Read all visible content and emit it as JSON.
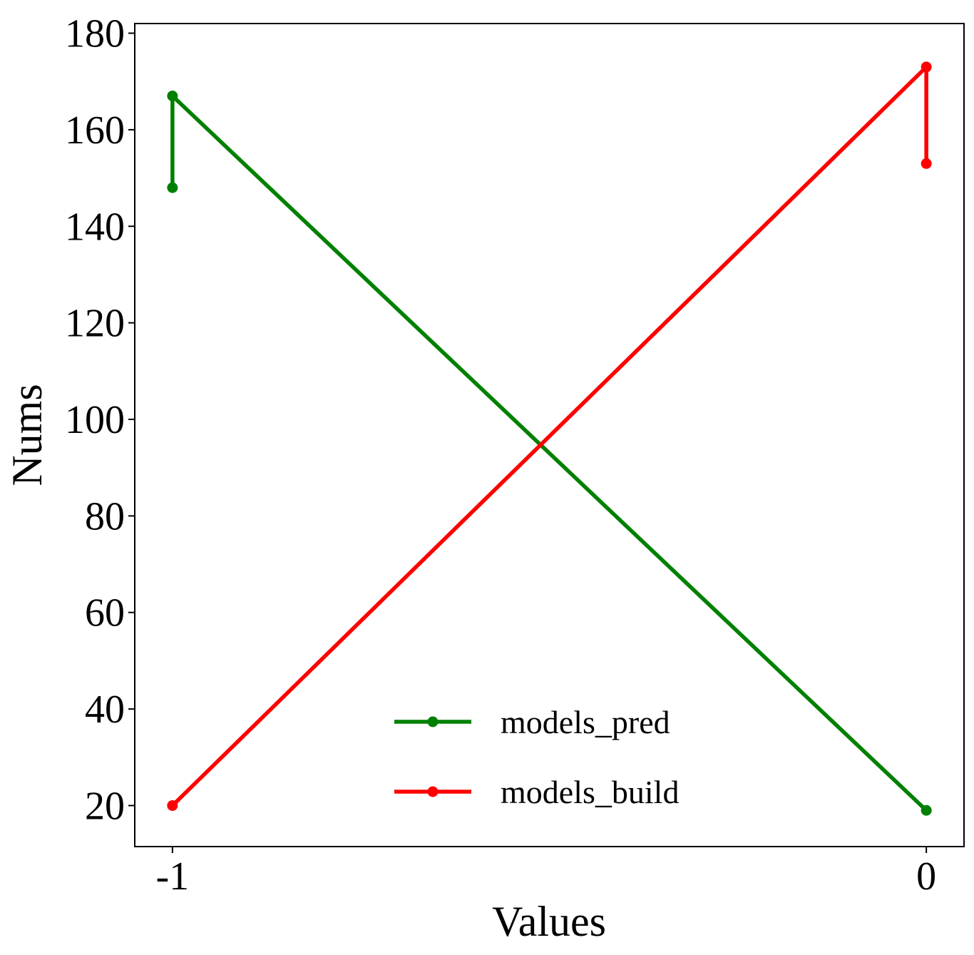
{
  "chart_data": {
    "type": "line",
    "xlabel": "Values",
    "ylabel": "Nums",
    "xlim": [
      -1.05,
      0.05
    ],
    "ylim": [
      11.5,
      182
    ],
    "x_ticks": [
      -1,
      0
    ],
    "x_tick_labels": [
      "-1",
      "0"
    ],
    "y_ticks": [
      20,
      40,
      60,
      80,
      100,
      120,
      140,
      160,
      180
    ],
    "y_tick_labels": [
      "20",
      "40",
      "60",
      "80",
      "100",
      "120",
      "140",
      "160",
      "180"
    ],
    "grid": false,
    "legend_position": "lower-center",
    "series": [
      {
        "name": "models_pred",
        "color": "#008000",
        "marker": "circle",
        "points": [
          {
            "x": -1,
            "y": 148
          },
          {
            "x": -1,
            "y": 167
          },
          {
            "x": 0,
            "y": 19
          }
        ]
      },
      {
        "name": "models_build",
        "color": "#ff0000",
        "marker": "circle",
        "points": [
          {
            "x": -1,
            "y": 20
          },
          {
            "x": 0,
            "y": 173
          },
          {
            "x": 0,
            "y": 153
          }
        ]
      }
    ]
  }
}
